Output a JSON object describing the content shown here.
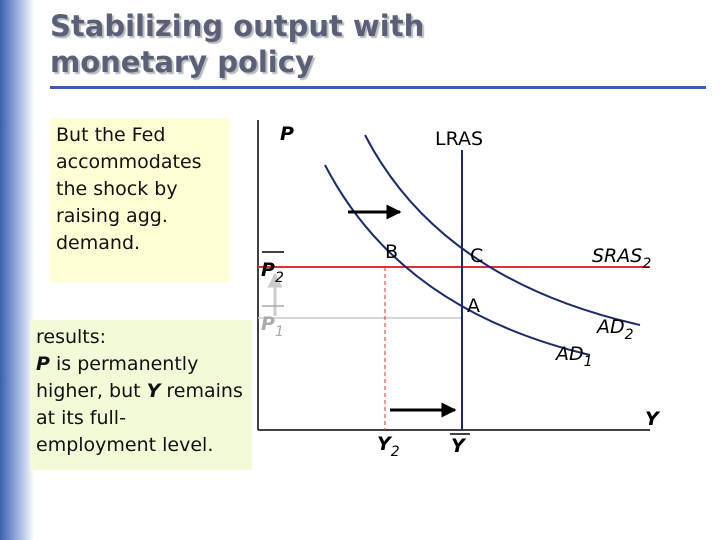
{
  "title": "Stabilizing output with monetary policy",
  "box1": "But the Fed accommodates the shock by raising agg. demand.",
  "box2": {
    "heading": "results:",
    "p": "P",
    "text1": " is permanently higher, but ",
    "y": "Y",
    "text2": " remains at its full-employment level."
  },
  "diagram": {
    "p_axis": "P",
    "y_axis": "Y",
    "lras": "LRAS",
    "point_b": "B",
    "point_c": "C",
    "point_a": "A",
    "sras2": {
      "text": "SRAS",
      "sub": "2"
    },
    "ad2": {
      "text": "AD",
      "sub": "2"
    },
    "ad1": {
      "text": "AD",
      "sub": "1"
    },
    "y2": {
      "text": "Y",
      "sub": "2"
    },
    "ybar": "Y",
    "p2": {
      "text": "P",
      "sub": "2"
    },
    "p1": {
      "text": "P",
      "sub": "1"
    }
  }
}
